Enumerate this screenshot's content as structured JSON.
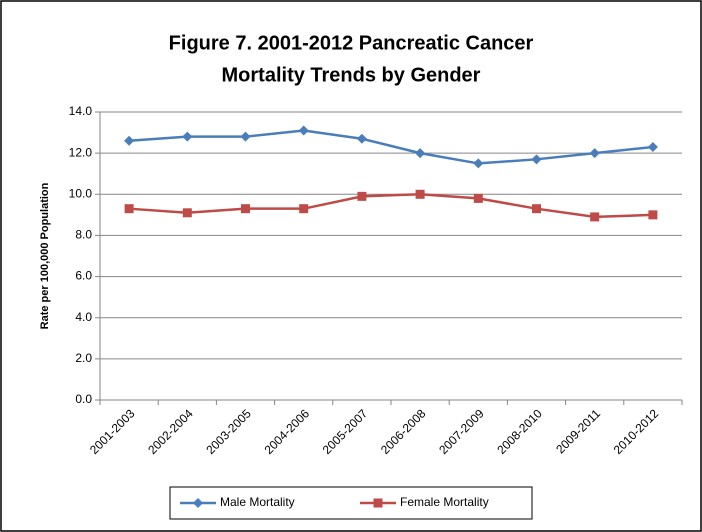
{
  "chart_data": {
    "type": "line",
    "title": [
      "Figure 7.  2001-2012 Pancreatic Cancer",
      "Mortality Trends by Gender"
    ],
    "y_label": "Rate per 100,000 Population",
    "categories": [
      "2001-2003",
      "2002-2004",
      "2003-2005",
      "2004-2006",
      "2005-2007",
      "2006-2008",
      "2007-2009",
      "2008-2010",
      "2009-2011",
      "2010-2012"
    ],
    "series": [
      {
        "name": "Male Mortality",
        "color": "#4a7ebb",
        "marker": "diamond",
        "values": [
          12.6,
          12.8,
          12.8,
          13.1,
          12.7,
          12.0,
          11.5,
          11.7,
          12.0,
          12.3
        ]
      },
      {
        "name": "Female Mortality",
        "color": "#be4b48",
        "marker": "square",
        "values": [
          9.3,
          9.1,
          9.3,
          9.3,
          9.9,
          10.0,
          9.8,
          9.3,
          8.9,
          9.0
        ]
      }
    ],
    "ylim": [
      0,
      14
    ],
    "yticks": [
      {
        "value": 0,
        "label": "0.0"
      },
      {
        "value": 2,
        "label": "2.0"
      },
      {
        "value": 4,
        "label": "4.0"
      },
      {
        "value": 6,
        "label": "6.0"
      },
      {
        "value": 8,
        "label": "8.0"
      },
      {
        "value": 10,
        "label": "10.0"
      },
      {
        "value": 12,
        "label": "12.0"
      },
      {
        "value": 14,
        "label": "14.0"
      }
    ],
    "grid": true,
    "legend": "bottom"
  }
}
